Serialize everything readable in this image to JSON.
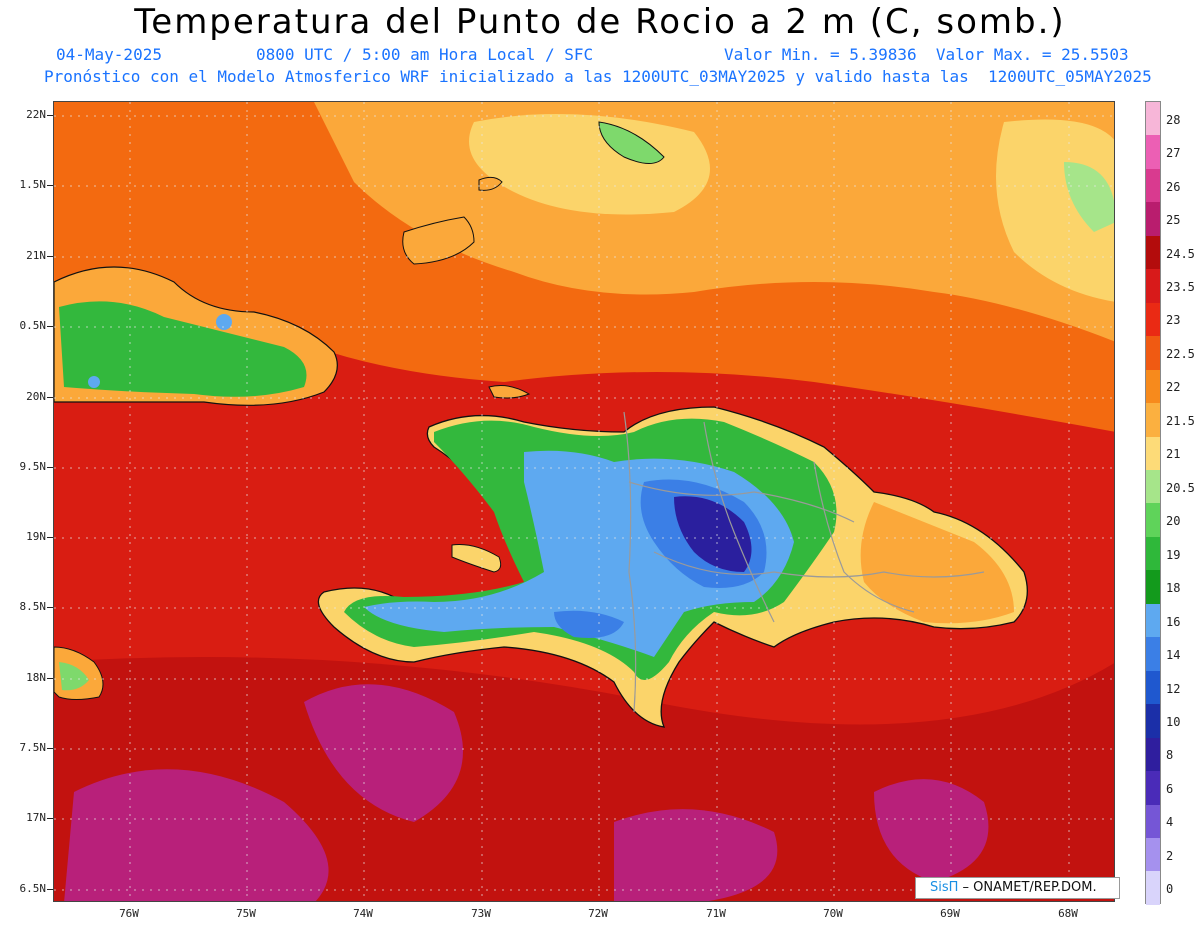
{
  "title": "Temperatura del Punto de Rocio a 2 m (C, somb.)",
  "subtitle": {
    "date": "04-May-2025",
    "time": "0800 UTC / 5:00 am Hora Local / SFC",
    "minmax": "Valor Min. = 5.39836  Valor Max. = 25.5503",
    "model": "Pronóstico con el Modelo Atmosferico WRF inicializado a las 1200UTC_03MAY2025 y valido hasta las  1200UTC_05MAY2025"
  },
  "axes": {
    "lat_labels": [
      "22N",
      "1.5N",
      "21N",
      "0.5N",
      "20N",
      "9.5N",
      "19N",
      "8.5N",
      "18N",
      "7.5N",
      "17N",
      "6.5N"
    ],
    "lon_labels": [
      "76W",
      "75W",
      "74W",
      "73W",
      "72W",
      "71W",
      "70W",
      "69W",
      "68W"
    ]
  },
  "colorbar": {
    "labels": [
      "28",
      "27",
      "26",
      "25",
      "24.5",
      "23.5",
      "23",
      "22.5",
      "22",
      "21.5",
      "21",
      "20.5",
      "20",
      "19",
      "18",
      "16",
      "14",
      "12",
      "10",
      "8",
      "6",
      "4",
      "2",
      "0"
    ],
    "colors": [
      "#f7b6d8",
      "#ec5fb4",
      "#d93a8f",
      "#b91d6e",
      "#b30c0c",
      "#d81a1a",
      "#ea2a14",
      "#f05a12",
      "#f78a1c",
      "#fbb040",
      "#fddb78",
      "#a6e58a",
      "#5fd35a",
      "#2fb83a",
      "#139a1c",
      "#5ea9f0",
      "#3b7fe6",
      "#1f58cf",
      "#1b2fa8",
      "#2f1e9e",
      "#4a2bb8",
      "#7556d6",
      "#a591ee",
      "#d9d4fb"
    ]
  },
  "credit": {
    "logo": "SisΠ",
    "text": " – ONAMET/REP.DOM."
  },
  "palette": {
    "sea_red": "#d91d12",
    "sea_dark": "#c2120f",
    "magenta": "#b8207a",
    "orange": "#f36a10",
    "light_orange": "#fba83a",
    "yellow": "#fbd46a",
    "light_green": "#7ed96c",
    "green": "#33b83d",
    "dark_green": "#139a1c",
    "light_blue": "#5ea9f0",
    "blue": "#3b7fe6",
    "dark_blue": "#1f3fbf",
    "indigo": "#2a1f9e",
    "coast": "#111111",
    "border": "#9a9a9a",
    "grid": "#d8d8d8"
  }
}
